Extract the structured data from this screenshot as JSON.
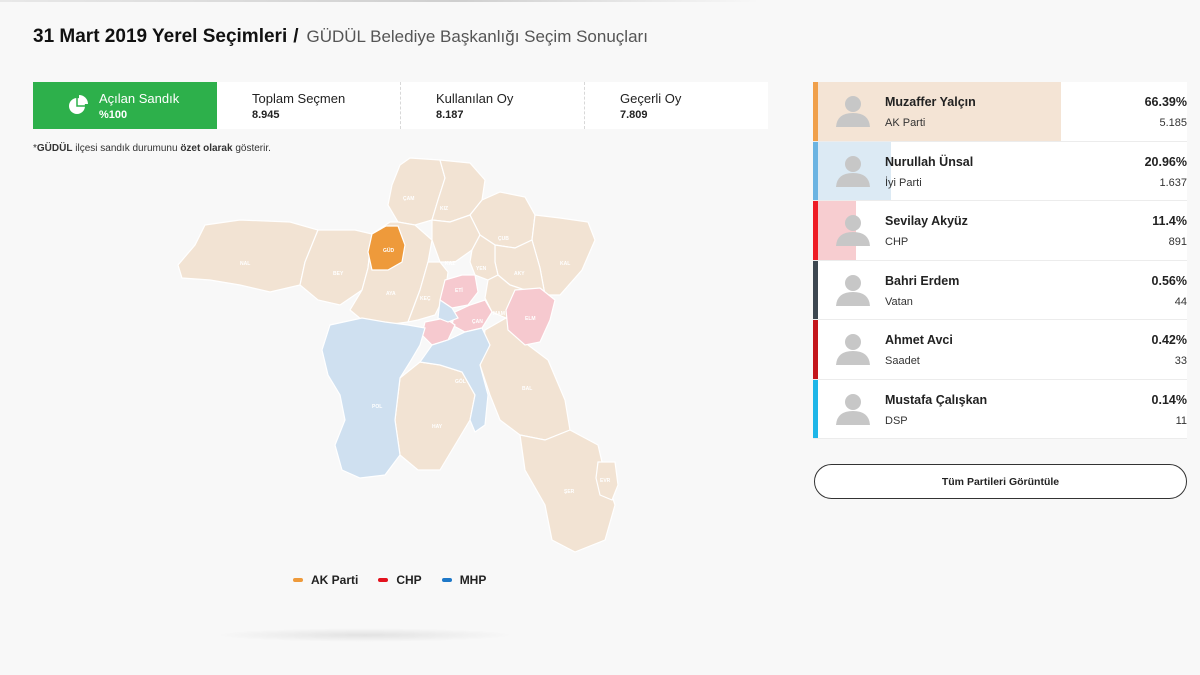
{
  "header": {
    "title": "31 Mart 2019 Yerel Seçimleri",
    "separator": "/",
    "subtitle": "GÜDÜL Belediye Başkanlığı Seçim Sonuçları"
  },
  "stats": [
    {
      "label": "Açılan Sandık",
      "value": "%100",
      "icon": "pie-chart-icon"
    },
    {
      "label": "Toplam Seçmen",
      "value": "8.945"
    },
    {
      "label": "Kullanılan Oy",
      "value": "8.187"
    },
    {
      "label": "Geçerli Oy",
      "value": "7.809"
    }
  ],
  "note": {
    "prefix": "*",
    "district": "GÜDÜL",
    "middle": " ilçesi sandık durumunu ",
    "emphasis": "özet olarak",
    "suffix": " gösterir."
  },
  "map": {
    "districts": [
      "ÇAM",
      "KIZ",
      "GÜD",
      "ÇUB",
      "NAL",
      "BEY",
      "AYA",
      "KAZ",
      "AKY",
      "KAL",
      "KEÇ",
      "YEN",
      "ETİ",
      "ÇAN",
      "MAM",
      "ELM",
      "POL",
      "GÖL",
      "BAL",
      "HAY",
      "ŞER",
      "EVR"
    ],
    "colors": {
      "akp": "#f2e3d3",
      "akp_highlight": "#ee9a3b",
      "chp": "#f6c9cf",
      "mhp": "#cfe0f0",
      "border": "#ffffff"
    }
  },
  "legend": [
    {
      "label": "AK Parti",
      "color": "#ee9a3b"
    },
    {
      "label": "CHP",
      "color": "#e3121e"
    },
    {
      "label": "MHP",
      "color": "#1e78c8"
    }
  ],
  "candidates": [
    {
      "name": "Muzaffer Yalçın",
      "party": "AK Parti",
      "percent": "66.39%",
      "share": 66.39,
      "votes": "5.185",
      "stripe": "#f0a04b",
      "fill": "#f4e4d5"
    },
    {
      "name": "Nurullah Ünsal",
      "party": "İyi Parti",
      "percent": "20.96%",
      "share": 20.96,
      "votes": "1.637",
      "stripe": "#6cb4e2",
      "fill": "#dceaf4"
    },
    {
      "name": "Sevilay Akyüz",
      "party": "CHP",
      "percent": "11.4%",
      "share": 11.4,
      "votes": "891",
      "stripe": "#ee1c25",
      "fill": "#f7cdd0"
    },
    {
      "name": "Bahri Erdem",
      "party": "Vatan",
      "percent": "0.56%",
      "share": 0.56,
      "votes": "44",
      "stripe": "#3d4750",
      "fill": "#ffffff"
    },
    {
      "name": "Ahmet Avci",
      "party": "Saadet",
      "percent": "0.42%",
      "share": 0.42,
      "votes": "33",
      "stripe": "#c4161c",
      "fill": "#ffffff"
    },
    {
      "name": "Mustafa Çalışkan",
      "party": "DSP",
      "percent": "0.14%",
      "share": 0.14,
      "votes": "11",
      "stripe": "#1fb6e8",
      "fill": "#ffffff"
    }
  ],
  "buttons": {
    "all_parties": "Tüm Partileri Görüntüle"
  }
}
